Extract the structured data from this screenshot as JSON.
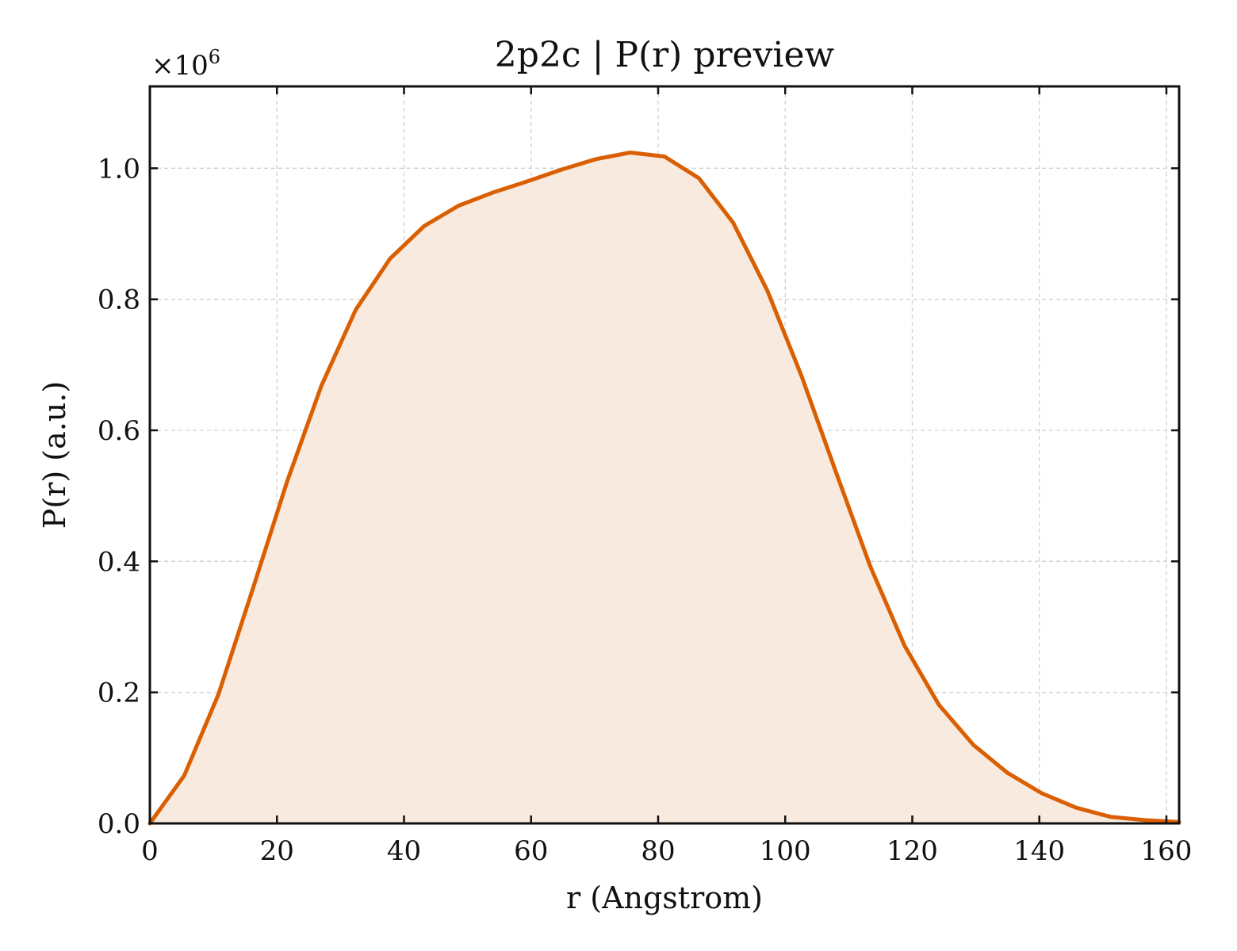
{
  "chart_data": {
    "type": "area",
    "title": "2p2c | P(r) preview",
    "xlabel": "r (Angstrom)",
    "ylabel": "P(r) (a.u.)",
    "y_multiplier": "×10",
    "y_multiplier_exp": "6",
    "xlim": [
      0,
      162
    ],
    "ylim": [
      0,
      1.125
    ],
    "xticks": [
      0,
      20,
      40,
      60,
      80,
      100,
      120,
      140,
      160
    ],
    "xtick_labels": [
      "0",
      "20",
      "40",
      "60",
      "80",
      "100",
      "120",
      "140",
      "160"
    ],
    "yticks": [
      0.0,
      0.2,
      0.4,
      0.6,
      0.8,
      1.0
    ],
    "ytick_labels": [
      "0.0",
      "0.2",
      "0.4",
      "0.6",
      "0.8",
      "1.0"
    ],
    "grid": true,
    "line_color": "#d95f02",
    "fill_color": "#f8eadf",
    "series": [
      {
        "x": [
          0,
          5.4,
          10.8,
          16.2,
          21.6,
          27.0,
          32.4,
          37.8,
          43.2,
          48.6,
          54.0,
          59.4,
          64.8,
          70.2,
          75.6,
          81.0,
          86.4,
          91.8,
          97.2,
          102.6,
          108.0,
          113.4,
          118.8,
          124.2,
          129.6,
          135.0,
          140.4,
          145.8,
          151.2,
          156.6,
          162.0
        ],
        "y": [
          0.0,
          0.073,
          0.197,
          0.358,
          0.522,
          0.668,
          0.784,
          0.862,
          0.912,
          0.943,
          0.963,
          0.98,
          0.998,
          1.014,
          1.024,
          1.018,
          0.985,
          0.917,
          0.813,
          0.682,
          0.536,
          0.392,
          0.271,
          0.181,
          0.12,
          0.077,
          0.046,
          0.024,
          0.01,
          0.005,
          0.002
        ]
      }
    ]
  }
}
